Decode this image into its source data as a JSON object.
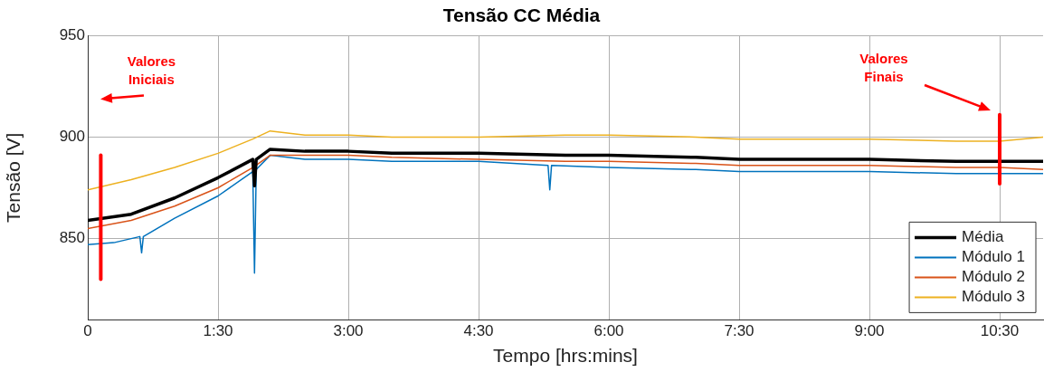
{
  "chart_data": {
    "type": "line",
    "title": "Tensão CC Média",
    "xlabel": "Tempo [hrs:mins]",
    "ylabel": "Tensão [V]",
    "xlim": [
      0,
      11
    ],
    "ylim": [
      810,
      950
    ],
    "xticks": [
      {
        "value": 0,
        "label": "0"
      },
      {
        "value": 1.5,
        "label": "1:30"
      },
      {
        "value": 3,
        "label": "3:00"
      },
      {
        "value": 4.5,
        "label": "4:30"
      },
      {
        "value": 6,
        "label": "6:00"
      },
      {
        "value": 7.5,
        "label": "7:30"
      },
      {
        "value": 9,
        "label": "9:00"
      },
      {
        "value": 10.5,
        "label": "10:30"
      }
    ],
    "yticks": [
      850,
      900,
      950
    ],
    "grid": true,
    "legend": "bottom right",
    "marker": "none",
    "line_style": "solid",
    "series": [
      {
        "name": "Média",
        "color": "#000000",
        "x": [
          0,
          0.5,
          1,
          1.5,
          1.9,
          1.92,
          1.94,
          2.1,
          2.5,
          3,
          3.5,
          4.5,
          5.5,
          6,
          7,
          7.5,
          8,
          9,
          10,
          10.5,
          11
        ],
        "values": [
          859,
          862,
          870,
          880,
          889,
          876,
          889,
          894,
          893,
          893,
          892,
          892,
          891,
          891,
          890,
          889,
          889,
          889,
          888,
          888,
          888
        ]
      },
      {
        "name": "Módulo 1",
        "color": "#0072bd",
        "x": [
          0,
          0.3,
          0.6,
          0.62,
          0.64,
          1,
          1.5,
          1.9,
          1.92,
          1.94,
          2.1,
          2.5,
          3,
          3.5,
          4.5,
          5.3,
          5.32,
          5.34,
          6,
          7,
          7.5,
          8,
          9,
          10,
          10.5,
          11
        ],
        "values": [
          847,
          848,
          851,
          843,
          851,
          860,
          871,
          883,
          833,
          884,
          891,
          889,
          889,
          888,
          888,
          886,
          874,
          886,
          885,
          884,
          883,
          883,
          883,
          882,
          882,
          882
        ]
      },
      {
        "name": "Módulo 2",
        "color": "#d95319",
        "x": [
          0,
          0.5,
          1,
          1.5,
          1.9,
          2.1,
          2.5,
          3,
          3.5,
          4.5,
          5.5,
          6,
          7,
          7.5,
          8,
          9,
          10,
          10.5,
          11
        ],
        "values": [
          855,
          859,
          866,
          875,
          885,
          891,
          891,
          891,
          890,
          889,
          888,
          888,
          887,
          886,
          886,
          886,
          885,
          885,
          884
        ]
      },
      {
        "name": "Módulo 3",
        "color": "#edb120",
        "x": [
          0,
          0.5,
          1,
          1.5,
          1.9,
          2.1,
          2.5,
          3,
          3.5,
          4.5,
          5.5,
          6,
          7,
          7.5,
          8,
          9,
          10,
          10.5,
          11
        ],
        "values": [
          874,
          879,
          885,
          892,
          899,
          903,
          901,
          901,
          900,
          900,
          901,
          901,
          900,
          899,
          899,
          899,
          898,
          898,
          900
        ]
      },
      {
        "color": "#ff0000",
        "x": [
          0.15,
          0.15
        ],
        "values": [
          830,
          891
        ]
      },
      {
        "color": "#ff0000",
        "x": [
          10.5,
          10.5
        ],
        "values": [
          877,
          911
        ]
      }
    ],
    "annotations": [
      "Valores Iniciais",
      "Valores Finais"
    ]
  }
}
